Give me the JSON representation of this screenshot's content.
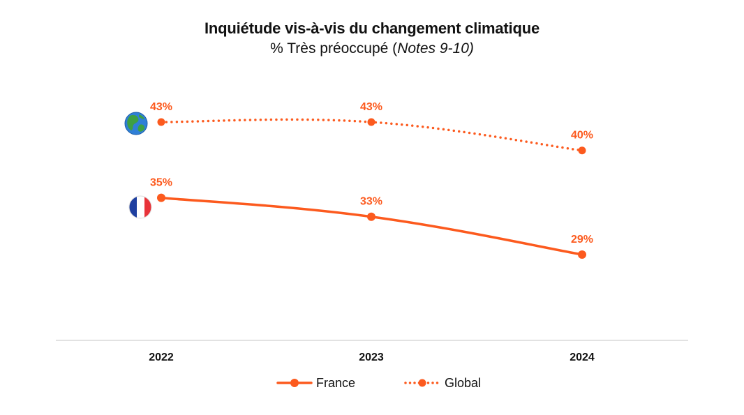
{
  "colors": {
    "accent": "#fc5a1e",
    "axis": "#d9d9d9",
    "text": "#111111"
  },
  "chart_data": {
    "type": "line",
    "title": "Inquiétude vis-à-vis du changement climatique",
    "subtitle_main": "% Très préoccupé (",
    "subtitle_italic": "Notes 9-10)",
    "categories": [
      "2022",
      "2023",
      "2024"
    ],
    "ylim": [
      20,
      50
    ],
    "series": [
      {
        "name": "Global",
        "style": "dotted",
        "icon": "globe-icon",
        "values": [
          43,
          43,
          40
        ],
        "labels": [
          "43%",
          "43%",
          "40%"
        ]
      },
      {
        "name": "France",
        "style": "solid",
        "icon": "france-flag-icon",
        "values": [
          35,
          33,
          29
        ],
        "labels": [
          "35%",
          "33%",
          "29%"
        ]
      }
    ],
    "legend": {
      "position": "bottom-center",
      "entries": [
        "France",
        "Global"
      ]
    }
  }
}
